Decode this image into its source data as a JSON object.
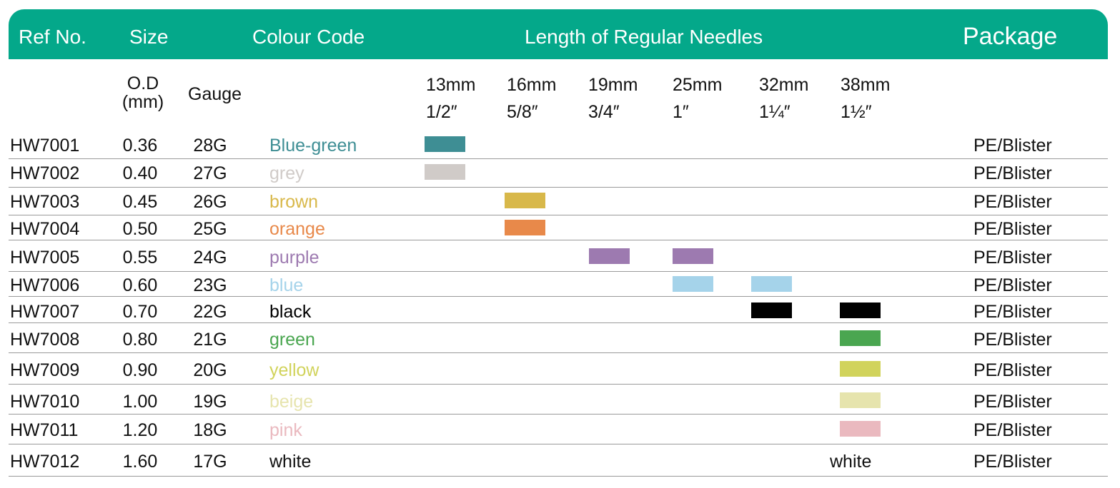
{
  "header": {
    "ref_no": "Ref No.",
    "size": "Size",
    "colour_code": "Colour Code",
    "length": "Length of Regular Needles",
    "package": "Package"
  },
  "subheader": {
    "od": "O.D",
    "od_unit": "(mm)",
    "gauge": "Gauge",
    "lengths": [
      {
        "mm": "13mm",
        "inch": "1/2″"
      },
      {
        "mm": "16mm",
        "inch": "5/8″"
      },
      {
        "mm": "19mm",
        "inch": "3/4″"
      },
      {
        "mm": "25mm",
        "inch": "1″"
      },
      {
        "mm": "32mm",
        "inch": "1¼″"
      },
      {
        "mm": "38mm",
        "inch": "1½″"
      }
    ]
  },
  "table": {
    "rows": [
      {
        "ref": "HW7001",
        "od": "0.36",
        "gauge": "28G",
        "colour": "Blue-green",
        "color": "#3e8e94",
        "lengths": [
          true,
          false,
          false,
          false,
          false,
          false
        ],
        "package": "PE/Blister"
      },
      {
        "ref": "HW7002",
        "od": "0.40",
        "gauge": "27G",
        "colour": "grey",
        "color": "#d0cbc8",
        "lengths": [
          true,
          false,
          false,
          false,
          false,
          false
        ],
        "package": "PE/Blister"
      },
      {
        "ref": "HW7003",
        "od": "0.45",
        "gauge": "26G",
        "colour": "brown",
        "color": "#d8b84a",
        "lengths": [
          false,
          true,
          false,
          false,
          false,
          false
        ],
        "package": "PE/Blister"
      },
      {
        "ref": "HW7004",
        "od": "0.50",
        "gauge": "25G",
        "colour": "orange",
        "color": "#e8894a",
        "lengths": [
          false,
          true,
          false,
          false,
          false,
          false
        ],
        "package": "PE/Blister"
      },
      {
        "ref": "HW7005",
        "od": "0.55",
        "gauge": "24G",
        "colour": "purple",
        "color": "#9d7ab0",
        "lengths": [
          false,
          false,
          true,
          true,
          false,
          false
        ],
        "package": "PE/Blister"
      },
      {
        "ref": "HW7006",
        "od": "0.60",
        "gauge": "23G",
        "colour": "blue",
        "color": "#a5d3ea",
        "lengths": [
          false,
          false,
          false,
          true,
          true,
          false
        ],
        "package": "PE/Blister"
      },
      {
        "ref": "HW7007",
        "od": "0.70",
        "gauge": "22G",
        "colour": "black",
        "color": "#000000",
        "lengths": [
          false,
          false,
          false,
          false,
          true,
          true
        ],
        "package": "PE/Blister"
      },
      {
        "ref": "HW7008",
        "od": "0.80",
        "gauge": "21G",
        "colour": "green",
        "color": "#4aa650",
        "lengths": [
          false,
          false,
          false,
          false,
          false,
          true
        ],
        "package": "PE/Blister"
      },
      {
        "ref": "HW7009",
        "od": "0.90",
        "gauge": "20G",
        "colour": "yellow",
        "color": "#d1d35c",
        "lengths": [
          false,
          false,
          false,
          false,
          false,
          true
        ],
        "package": "PE/Blister"
      },
      {
        "ref": "HW7010",
        "od": "1.00",
        "gauge": "19G",
        "colour": "beige",
        "color": "#e6e4ad",
        "lengths": [
          false,
          false,
          false,
          false,
          false,
          true
        ],
        "package": "PE/Blister"
      },
      {
        "ref": "HW7011",
        "od": "1.20",
        "gauge": "18G",
        "colour": "pink",
        "color": "#eab9bf",
        "lengths": [
          false,
          false,
          false,
          false,
          false,
          true
        ],
        "package": "PE/Blister"
      },
      {
        "ref": "HW7012",
        "od": "1.60",
        "gauge": "17G",
        "colour": "white",
        "color": "#111111",
        "lengths": [
          false,
          false,
          false,
          false,
          false,
          true
        ],
        "length_label": "white",
        "package": "PE/Blister"
      }
    ]
  }
}
